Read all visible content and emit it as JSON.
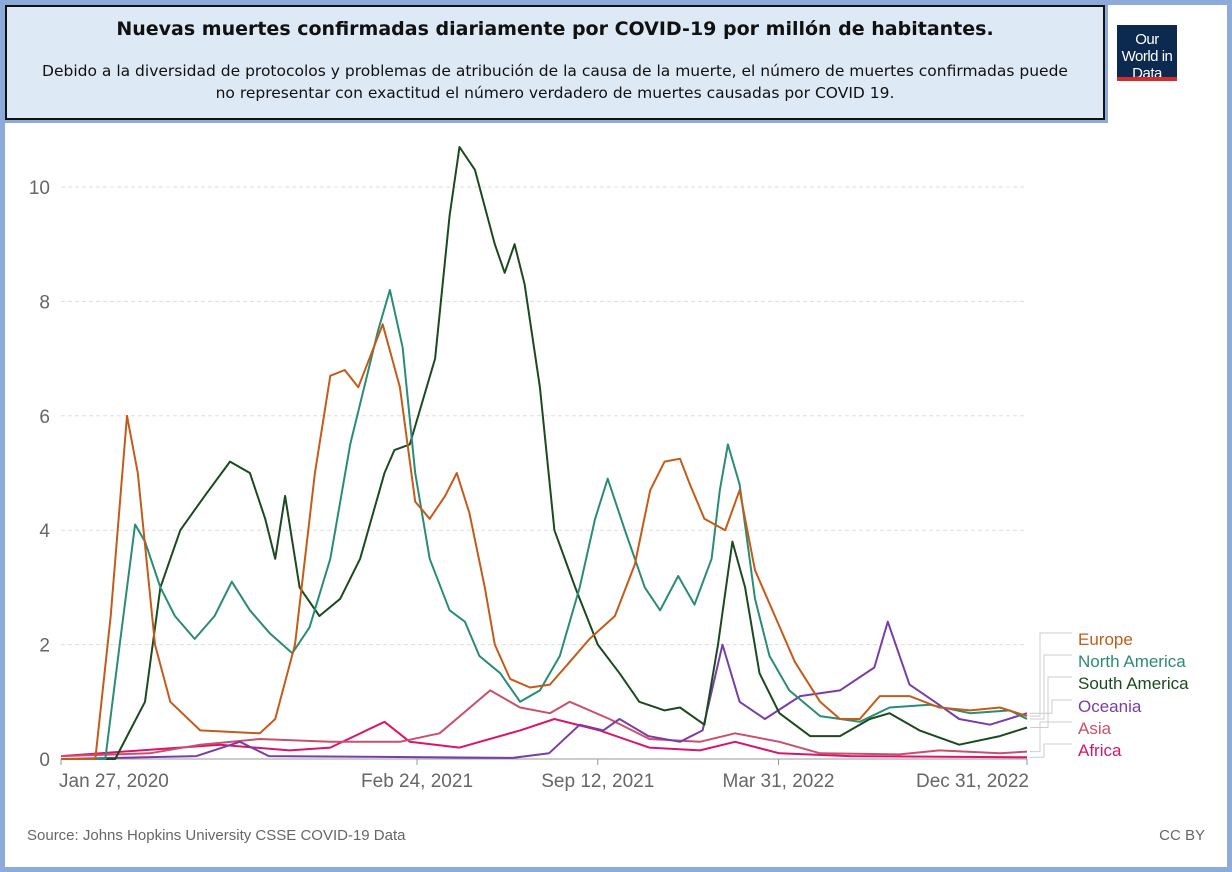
{
  "header": {
    "title": "Nuevas muertes confirmadas diariamente por COVID-19 por millón de habitantes.",
    "subtitle": "Debido a la diversidad de protocolos y problemas de atribución de la causa de la muerte, el número de muertes confirmadas puede no representar con exactitud el número verdadero de muertes causadas por COVID 19.",
    "logo": "Our World in Data"
  },
  "footer": {
    "source": "Source: Johns Hopkins University CSSE COVID-19 Data",
    "license": "CC BY"
  },
  "chart_data": {
    "type": "line",
    "title": "Nuevas muertes confirmadas diariamente por COVID-19 por millón de habitantes.",
    "xlabel": "",
    "ylabel": "",
    "x_unit": "days since Jan 27, 2020",
    "xlim": [
      0,
      1069
    ],
    "ylim": [
      0,
      10.7
    ],
    "grid": true,
    "legend_placement": "right",
    "y_ticks": [
      0,
      2,
      4,
      6,
      8,
      10
    ],
    "x_ticks": [
      {
        "day": 0,
        "label": "Jan 27, 2020"
      },
      {
        "day": 394,
        "label": "Feb 24, 2021"
      },
      {
        "day": 594,
        "label": "Sep 12, 2021"
      },
      {
        "day": 794,
        "label": "Mar 31, 2022"
      },
      {
        "day": 1069,
        "label": "Dec 31, 2022"
      }
    ],
    "series": [
      {
        "name": "Europe",
        "color": "#c35b1a",
        "points": [
          [
            0,
            0
          ],
          [
            38,
            0
          ],
          [
            55,
            2.5
          ],
          [
            73,
            6
          ],
          [
            85,
            5
          ],
          [
            104,
            2
          ],
          [
            121,
            1
          ],
          [
            154,
            0.5
          ],
          [
            220,
            0.45
          ],
          [
            237,
            0.7
          ],
          [
            259,
            2
          ],
          [
            281,
            5
          ],
          [
            298,
            6.7
          ],
          [
            314,
            6.8
          ],
          [
            329,
            6.5
          ],
          [
            356,
            7.6
          ],
          [
            375,
            6.5
          ],
          [
            392,
            4.5
          ],
          [
            408,
            4.2
          ],
          [
            425,
            4.6
          ],
          [
            438,
            5.0
          ],
          [
            452,
            4.3
          ],
          [
            469,
            3
          ],
          [
            480,
            2
          ],
          [
            497,
            1.4
          ],
          [
            519,
            1.25
          ],
          [
            541,
            1.3
          ],
          [
            563,
            1.7
          ],
          [
            585,
            2.1
          ],
          [
            613,
            2.5
          ],
          [
            635,
            3.4
          ],
          [
            652,
            4.7
          ],
          [
            668,
            5.2
          ],
          [
            685,
            5.25
          ],
          [
            696,
            4.8
          ],
          [
            712,
            4.2
          ],
          [
            735,
            4.0
          ],
          [
            751,
            4.7
          ],
          [
            768,
            3.3
          ],
          [
            790,
            2.5
          ],
          [
            812,
            1.7
          ],
          [
            840,
            1.0
          ],
          [
            862,
            0.7
          ],
          [
            884,
            0.7
          ],
          [
            906,
            1.1
          ],
          [
            939,
            1.1
          ],
          [
            972,
            0.9
          ],
          [
            1006,
            0.85
          ],
          [
            1039,
            0.9
          ],
          [
            1069,
            0.75
          ]
        ]
      },
      {
        "name": "North America",
        "color": "#2a8c74",
        "points": [
          [
            0,
            0
          ],
          [
            49,
            0
          ],
          [
            65,
            2
          ],
          [
            82,
            4.1
          ],
          [
            93,
            3.8
          ],
          [
            110,
            3
          ],
          [
            126,
            2.5
          ],
          [
            148,
            2.1
          ],
          [
            170,
            2.5
          ],
          [
            189,
            3.1
          ],
          [
            209,
            2.6
          ],
          [
            231,
            2.2
          ],
          [
            256,
            1.85
          ],
          [
            275,
            2.3
          ],
          [
            298,
            3.5
          ],
          [
            320,
            5.5
          ],
          [
            351,
            7.5
          ],
          [
            364,
            8.2
          ],
          [
            378,
            7.2
          ],
          [
            392,
            5
          ],
          [
            408,
            3.5
          ],
          [
            430,
            2.6
          ],
          [
            447,
            2.4
          ],
          [
            463,
            1.8
          ],
          [
            486,
            1.5
          ],
          [
            508,
            1.0
          ],
          [
            530,
            1.2
          ],
          [
            552,
            1.8
          ],
          [
            574,
            3.0
          ],
          [
            591,
            4.2
          ],
          [
            605,
            4.9
          ],
          [
            624,
            4.0
          ],
          [
            646,
            3.0
          ],
          [
            663,
            2.6
          ],
          [
            683,
            3.2
          ],
          [
            701,
            2.7
          ],
          [
            720,
            3.5
          ],
          [
            729,
            4.7
          ],
          [
            738,
            5.5
          ],
          [
            751,
            4.8
          ],
          [
            768,
            2.8
          ],
          [
            784,
            1.8
          ],
          [
            806,
            1.2
          ],
          [
            840,
            0.75
          ],
          [
            884,
            0.65
          ],
          [
            917,
            0.9
          ],
          [
            961,
            0.95
          ],
          [
            1006,
            0.8
          ],
          [
            1050,
            0.85
          ],
          [
            1069,
            0.7
          ]
        ]
      },
      {
        "name": "South America",
        "color": "#1b4a1f",
        "points": [
          [
            0,
            0
          ],
          [
            60,
            0
          ],
          [
            93,
            1
          ],
          [
            110,
            3
          ],
          [
            132,
            4
          ],
          [
            159,
            4.6
          ],
          [
            187,
            5.2
          ],
          [
            209,
            5.0
          ],
          [
            226,
            4.2
          ],
          [
            237,
            3.5
          ],
          [
            248,
            4.6
          ],
          [
            264,
            3.0
          ],
          [
            286,
            2.5
          ],
          [
            309,
            2.8
          ],
          [
            331,
            3.5
          ],
          [
            358,
            5.0
          ],
          [
            369,
            5.4
          ],
          [
            386,
            5.5
          ],
          [
            414,
            7.0
          ],
          [
            430,
            9.5
          ],
          [
            441,
            10.7
          ],
          [
            458,
            10.3
          ],
          [
            480,
            9.0
          ],
          [
            491,
            8.5
          ],
          [
            502,
            9.0
          ],
          [
            513,
            8.3
          ],
          [
            530,
            6.5
          ],
          [
            546,
            4
          ],
          [
            569,
            3.0
          ],
          [
            594,
            2.0
          ],
          [
            618,
            1.5
          ],
          [
            640,
            1.0
          ],
          [
            668,
            0.85
          ],
          [
            685,
            0.9
          ],
          [
            712,
            0.6
          ],
          [
            727,
            2.0
          ],
          [
            743,
            3.8
          ],
          [
            757,
            3.0
          ],
          [
            773,
            1.5
          ],
          [
            795,
            0.8
          ],
          [
            829,
            0.4
          ],
          [
            862,
            0.4
          ],
          [
            895,
            0.7
          ],
          [
            917,
            0.8
          ],
          [
            950,
            0.5
          ],
          [
            994,
            0.25
          ],
          [
            1039,
            0.4
          ],
          [
            1069,
            0.55
          ]
        ]
      },
      {
        "name": "Oceania",
        "color": "#7a3da8",
        "points": [
          [
            0,
            0
          ],
          [
            150,
            0.05
          ],
          [
            198,
            0.3
          ],
          [
            230,
            0.05
          ],
          [
            500,
            0.02
          ],
          [
            540,
            0.1
          ],
          [
            574,
            0.6
          ],
          [
            600,
            0.5
          ],
          [
            618,
            0.7
          ],
          [
            650,
            0.4
          ],
          [
            685,
            0.3
          ],
          [
            710,
            0.5
          ],
          [
            732,
            2.0
          ],
          [
            751,
            1.0
          ],
          [
            779,
            0.7
          ],
          [
            818,
            1.1
          ],
          [
            862,
            1.2
          ],
          [
            900,
            1.6
          ],
          [
            915,
            2.4
          ],
          [
            939,
            1.3
          ],
          [
            967,
            1.0
          ],
          [
            994,
            0.7
          ],
          [
            1028,
            0.6
          ],
          [
            1069,
            0.8
          ]
        ]
      },
      {
        "name": "Asia",
        "color": "#c9506c",
        "points": [
          [
            0,
            0.05
          ],
          [
            98,
            0.1
          ],
          [
            154,
            0.25
          ],
          [
            220,
            0.35
          ],
          [
            298,
            0.3
          ],
          [
            375,
            0.3
          ],
          [
            419,
            0.45
          ],
          [
            475,
            1.2
          ],
          [
            508,
            0.9
          ],
          [
            541,
            0.8
          ],
          [
            563,
            1.0
          ],
          [
            607,
            0.7
          ],
          [
            651,
            0.35
          ],
          [
            707,
            0.3
          ],
          [
            746,
            0.45
          ],
          [
            795,
            0.3
          ],
          [
            840,
            0.1
          ],
          [
            928,
            0.08
          ],
          [
            972,
            0.15
          ],
          [
            1039,
            0.1
          ],
          [
            1069,
            0.13
          ]
        ]
      },
      {
        "name": "Africa",
        "color": "#d8156b",
        "points": [
          [
            0,
            0.05
          ],
          [
            176,
            0.25
          ],
          [
            253,
            0.15
          ],
          [
            298,
            0.2
          ],
          [
            358,
            0.65
          ],
          [
            386,
            0.3
          ],
          [
            441,
            0.2
          ],
          [
            508,
            0.5
          ],
          [
            546,
            0.7
          ],
          [
            596,
            0.5
          ],
          [
            651,
            0.2
          ],
          [
            707,
            0.15
          ],
          [
            746,
            0.3
          ],
          [
            795,
            0.1
          ],
          [
            873,
            0.05
          ],
          [
            1069,
            0.03
          ]
        ]
      }
    ]
  }
}
